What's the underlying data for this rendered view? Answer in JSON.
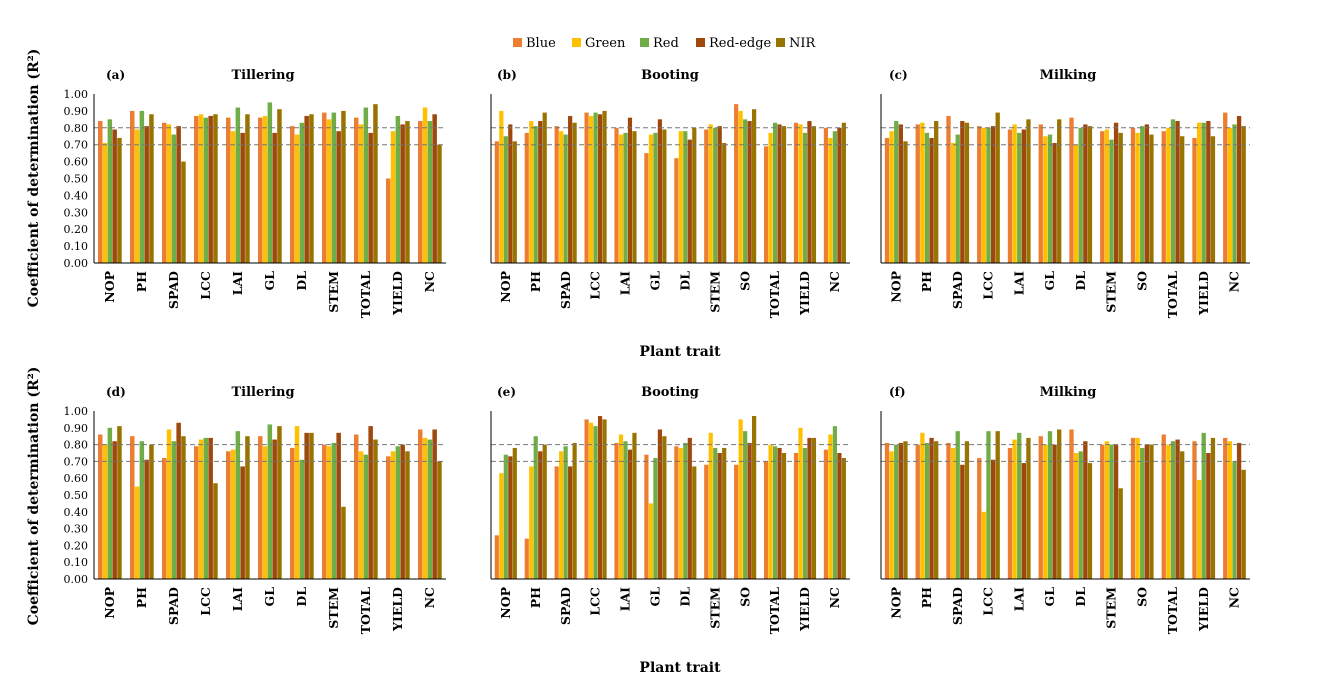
{
  "chart_data": [
    {
      "type": "bar",
      "panel": "(a)",
      "title": "Tillering",
      "categories": [
        "NOP",
        "PH",
        "SPAD",
        "LCC",
        "LAI",
        "GL",
        "DL",
        "STEM",
        "TOTAL",
        "YIELD",
        "NC"
      ],
      "ylim": [
        0,
        1
      ],
      "reference_lines": [
        0.7,
        0.8
      ],
      "series": [
        {
          "name": "Blue",
          "values": [
            0.84,
            0.9,
            0.83,
            0.87,
            0.86,
            0.86,
            0.81,
            0.89,
            0.86,
            0.5,
            0.84
          ]
        },
        {
          "name": "Green",
          "values": [
            0.71,
            0.79,
            0.82,
            0.88,
            0.78,
            0.87,
            0.76,
            0.85,
            0.82,
            0.78,
            0.92
          ]
        },
        {
          "name": "Red",
          "values": [
            0.85,
            0.9,
            0.76,
            0.86,
            0.92,
            0.95,
            0.83,
            0.89,
            0.92,
            0.87,
            0.84
          ]
        },
        {
          "name": "Red-edge",
          "values": [
            0.79,
            0.81,
            0.81,
            0.87,
            0.77,
            0.77,
            0.87,
            0.78,
            0.77,
            0.82,
            0.88
          ]
        },
        {
          "name": "NIR",
          "values": [
            0.74,
            0.88,
            0.6,
            0.88,
            0.88,
            0.91,
            0.88,
            0.9,
            0.94,
            0.84,
            0.7
          ]
        }
      ]
    },
    {
      "type": "bar",
      "panel": "(b)",
      "title": "Booting",
      "categories": [
        "NOP",
        "PH",
        "SPAD",
        "LCC",
        "LAI",
        "GL",
        "DL",
        "STEM",
        "SO",
        "TOTAL",
        "YIELD",
        "NC"
      ],
      "ylim": [
        0,
        1
      ],
      "reference_lines": [
        0.7,
        0.8
      ],
      "series": [
        {
          "name": "Blue",
          "values": [
            0.72,
            0.77,
            0.81,
            0.89,
            0.8,
            0.65,
            0.62,
            0.79,
            0.94,
            0.69,
            0.83,
            0.8
          ]
        },
        {
          "name": "Green",
          "values": [
            0.9,
            0.84,
            0.78,
            0.87,
            0.76,
            0.76,
            0.78,
            0.82,
            0.9,
            0.77,
            0.82,
            0.74
          ]
        },
        {
          "name": "Red",
          "values": [
            0.75,
            0.81,
            0.76,
            0.89,
            0.77,
            0.77,
            0.78,
            0.8,
            0.85,
            0.83,
            0.77,
            0.78
          ]
        },
        {
          "name": "Red-edge",
          "values": [
            0.82,
            0.84,
            0.87,
            0.88,
            0.86,
            0.85,
            0.73,
            0.81,
            0.84,
            0.82,
            0.84,
            0.8
          ]
        },
        {
          "name": "NIR",
          "values": [
            0.72,
            0.89,
            0.83,
            0.9,
            0.78,
            0.79,
            0.8,
            0.71,
            0.91,
            0.81,
            0.81,
            0.83
          ]
        }
      ]
    },
    {
      "type": "bar",
      "panel": "(c)",
      "title": "Milking",
      "categories": [
        "NOP",
        "PH",
        "SPAD",
        "LCC",
        "LAI",
        "GL",
        "DL",
        "STEM",
        "SO",
        "TOTAL",
        "YIELD",
        "NC"
      ],
      "ylim": [
        0,
        1
      ],
      "reference_lines": [
        0.7,
        0.8
      ],
      "series": [
        {
          "name": "Blue",
          "values": [
            0.74,
            0.82,
            0.87,
            0.81,
            0.79,
            0.82,
            0.86,
            0.78,
            0.8,
            0.78,
            0.74,
            0.89
          ]
        },
        {
          "name": "Green",
          "values": [
            0.78,
            0.83,
            0.71,
            0.8,
            0.82,
            0.75,
            0.7,
            0.79,
            0.77,
            0.8,
            0.83,
            0.8
          ]
        },
        {
          "name": "Red",
          "values": [
            0.84,
            0.77,
            0.76,
            0.8,
            0.77,
            0.76,
            0.8,
            0.73,
            0.81,
            0.85,
            0.83,
            0.82
          ]
        },
        {
          "name": "Red-edge",
          "values": [
            0.82,
            0.74,
            0.84,
            0.81,
            0.79,
            0.71,
            0.82,
            0.83,
            0.82,
            0.84,
            0.84,
            0.87
          ]
        },
        {
          "name": "NIR",
          "values": [
            0.72,
            0.84,
            0.83,
            0.89,
            0.85,
            0.85,
            0.81,
            0.77,
            0.76,
            0.75,
            0.75,
            0.81
          ]
        }
      ]
    },
    {
      "type": "bar",
      "panel": "(d)",
      "title": "Tillering",
      "categories": [
        "NOP",
        "PH",
        "SPAD",
        "LCC",
        "LAI",
        "GL",
        "DL",
        "STEM",
        "TOTAL",
        "YIELD",
        "NC"
      ],
      "ylim": [
        0,
        1
      ],
      "reference_lines": [
        0.7,
        0.8
      ],
      "series": [
        {
          "name": "Blue",
          "values": [
            0.86,
            0.85,
            0.72,
            0.79,
            0.76,
            0.85,
            0.78,
            0.8,
            0.86,
            0.73,
            0.89
          ]
        },
        {
          "name": "Green",
          "values": [
            0.8,
            0.55,
            0.89,
            0.83,
            0.77,
            0.79,
            0.91,
            0.79,
            0.76,
            0.76,
            0.84
          ]
        },
        {
          "name": "Red",
          "values": [
            0.9,
            0.82,
            0.82,
            0.84,
            0.88,
            0.92,
            0.71,
            0.81,
            0.74,
            0.79,
            0.83
          ]
        },
        {
          "name": "Red-edge",
          "values": [
            0.82,
            0.71,
            0.93,
            0.84,
            0.67,
            0.83,
            0.87,
            0.87,
            0.91,
            0.8,
            0.89
          ]
        },
        {
          "name": "NIR",
          "values": [
            0.91,
            0.8,
            0.85,
            0.57,
            0.85,
            0.91,
            0.87,
            0.43,
            0.83,
            0.76,
            0.7
          ]
        }
      ]
    },
    {
      "type": "bar",
      "panel": "(e)",
      "title": "Booting",
      "categories": [
        "NOP",
        "PH",
        "SPAD",
        "LCC",
        "LAI",
        "GL",
        "DL",
        "STEM",
        "SO",
        "TOTAL",
        "YIELD",
        "NC"
      ],
      "ylim": [
        0,
        1
      ],
      "reference_lines": [
        0.7,
        0.8
      ],
      "series": [
        {
          "name": "Blue",
          "values": [
            0.26,
            0.24,
            0.67,
            0.95,
            0.81,
            0.74,
            0.79,
            0.68,
            0.68,
            0.7,
            0.75,
            0.77
          ]
        },
        {
          "name": "Green",
          "values": [
            0.63,
            0.67,
            0.76,
            0.93,
            0.86,
            0.45,
            0.78,
            0.87,
            0.95,
            0.8,
            0.9,
            0.86
          ]
        },
        {
          "name": "Red",
          "values": [
            0.74,
            0.85,
            0.79,
            0.91,
            0.82,
            0.72,
            0.81,
            0.78,
            0.88,
            0.79,
            0.78,
            0.91
          ]
        },
        {
          "name": "Red-edge",
          "values": [
            0.73,
            0.76,
            0.67,
            0.97,
            0.77,
            0.89,
            0.84,
            0.75,
            0.81,
            0.78,
            0.84,
            0.75
          ]
        },
        {
          "name": "NIR",
          "values": [
            0.78,
            0.8,
            0.81,
            0.95,
            0.87,
            0.85,
            0.67,
            0.78,
            0.97,
            0.75,
            0.84,
            0.72
          ]
        }
      ]
    },
    {
      "type": "bar",
      "panel": "(f)",
      "title": "Milking",
      "categories": [
        "NOP",
        "PH",
        "SPAD",
        "LCC",
        "LAI",
        "GL",
        "DL",
        "STEM",
        "SO",
        "TOTAL",
        "YIELD",
        "NC"
      ],
      "ylim": [
        0,
        1
      ],
      "reference_lines": [
        0.7,
        0.8
      ],
      "series": [
        {
          "name": "Blue",
          "values": [
            0.81,
            0.8,
            0.81,
            0.72,
            0.78,
            0.85,
            0.89,
            0.8,
            0.84,
            0.86,
            0.82,
            0.84
          ]
        },
        {
          "name": "Green",
          "values": [
            0.76,
            0.87,
            0.78,
            0.4,
            0.83,
            0.8,
            0.75,
            0.82,
            0.84,
            0.8,
            0.59,
            0.82
          ]
        },
        {
          "name": "Red",
          "values": [
            0.8,
            0.81,
            0.88,
            0.88,
            0.87,
            0.88,
            0.76,
            0.8,
            0.78,
            0.82,
            0.87,
            0.7
          ]
        },
        {
          "name": "Red-edge",
          "values": [
            0.81,
            0.84,
            0.68,
            0.71,
            0.69,
            0.8,
            0.82,
            0.8,
            0.8,
            0.83,
            0.75,
            0.81
          ]
        },
        {
          "name": "NIR",
          "values": [
            0.82,
            0.82,
            0.82,
            0.88,
            0.84,
            0.89,
            0.69,
            0.54,
            0.8,
            0.76,
            0.84,
            0.65
          ]
        }
      ]
    }
  ],
  "legend": {
    "items": [
      "Blue",
      "Green",
      "Red",
      "Red-edge",
      "NIR"
    ],
    "colors": [
      "#ED7D31",
      "#FFC000",
      "#70AD47",
      "#9E480E",
      "#997300"
    ],
    "placement": "top-center"
  },
  "axes": {
    "y_label": "Coefficient of determination (R²)",
    "x_label": "Plant trait",
    "y_ticks": [
      "0.00",
      "0.10",
      "0.20",
      "0.30",
      "0.40",
      "0.50",
      "0.60",
      "0.70",
      "0.80",
      "0.90",
      "1.00"
    ]
  }
}
